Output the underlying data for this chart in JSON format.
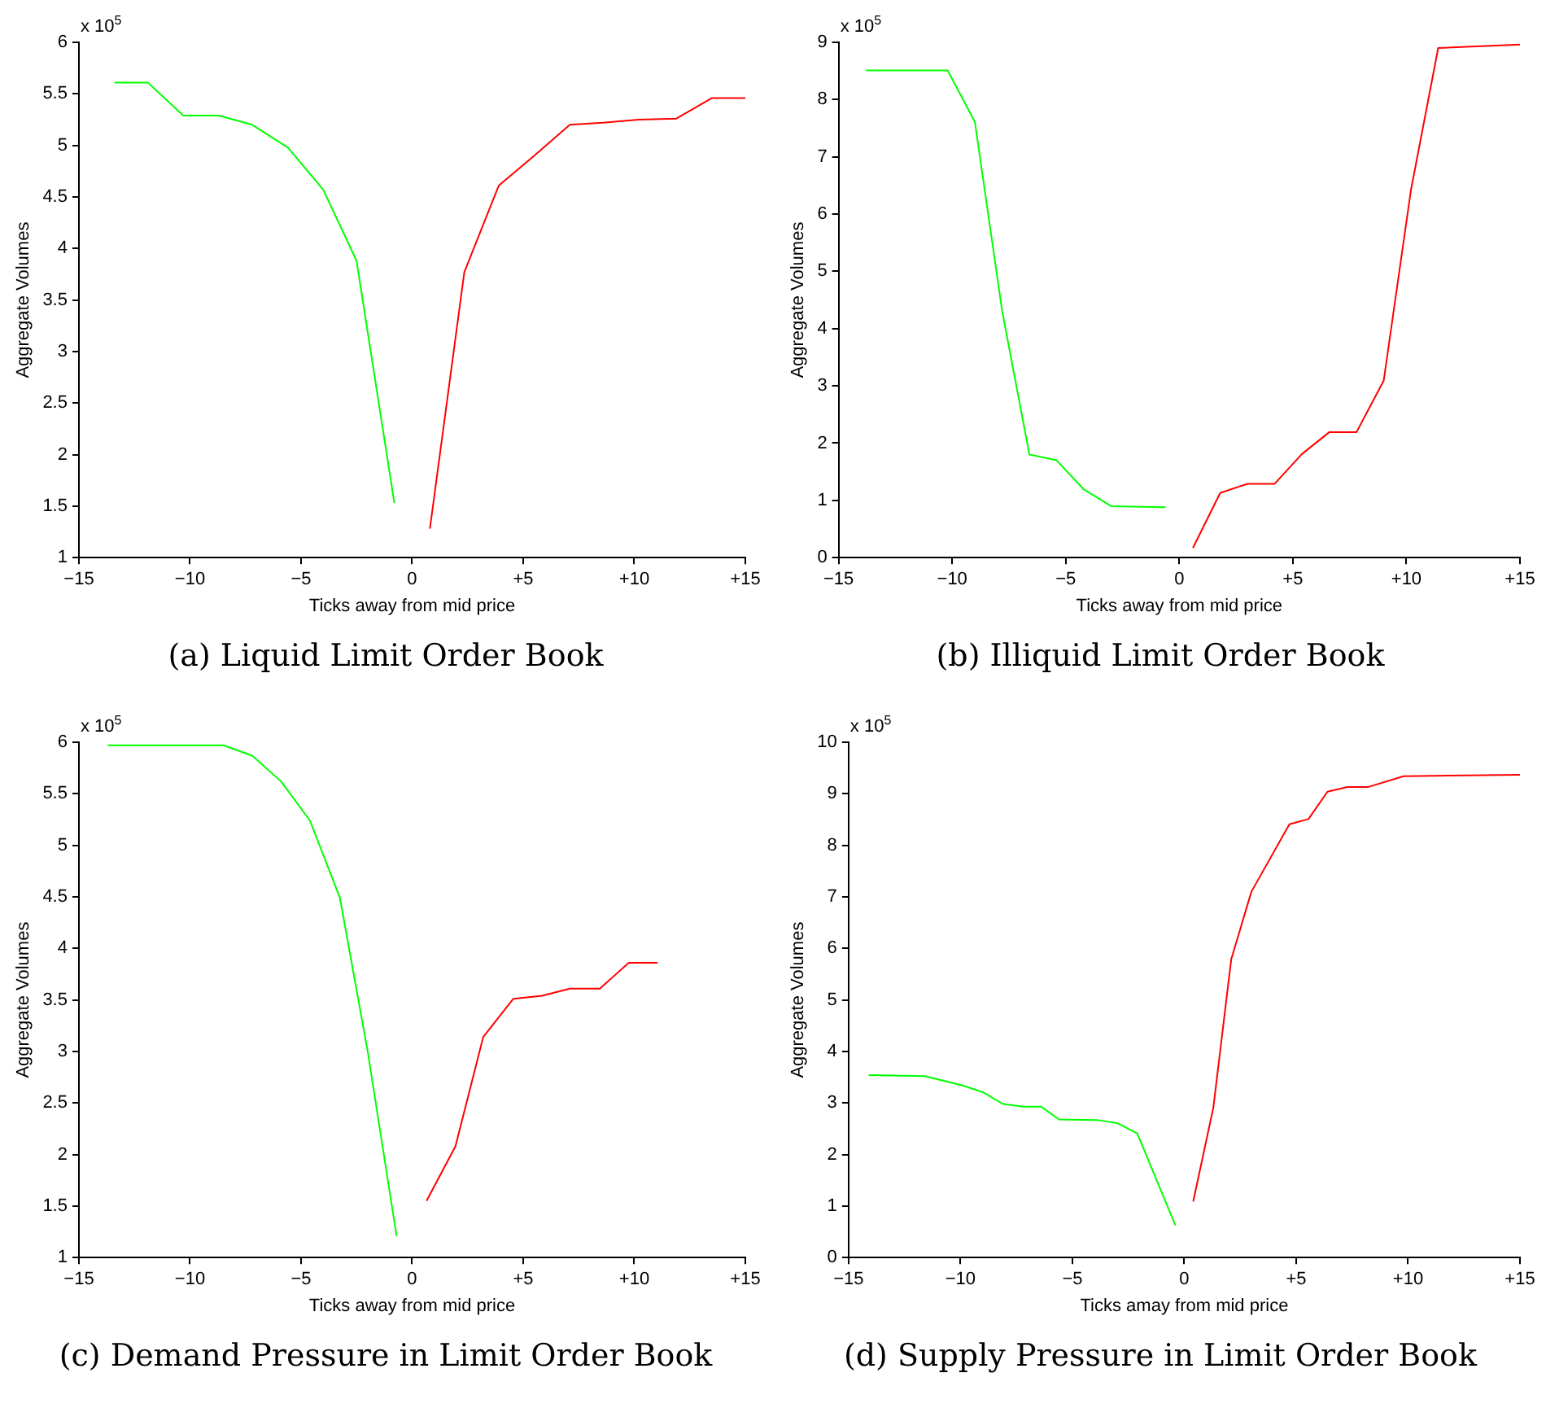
{
  "chart_data": [
    {
      "type": "line",
      "title": "(a) Liquid Limit Order Book",
      "xlabel": "Ticks away from mid price",
      "ylabel": "Aggregate Volumes",
      "annotations": [
        "x 10$^{5}$"
      ],
      "xlim": [
        -15,
        15
      ],
      "xticks": [
        {
          "value": -15,
          "label": "−15"
        },
        {
          "value": -10,
          "label": "−10"
        },
        {
          "value": -5,
          "label": "−5"
        },
        {
          "value": 0,
          "label": "0"
        },
        {
          "value": 5,
          "label": "+5"
        },
        {
          "value": 10,
          "label": "+10"
        },
        {
          "value": 15,
          "label": "+15"
        }
      ],
      "ylim": [
        1,
        6
      ],
      "yticks": [
        1,
        1.5,
        2,
        2.5,
        3,
        3.5,
        4,
        4.5,
        5,
        5.5,
        6
      ],
      "grid": false,
      "legend": false,
      "series": [
        {
          "color": "#00ff00",
          "x": [
            -13.4,
            -11.9,
            -10.3,
            -8.7,
            -7.2,
            -5.6,
            -4.0,
            -2.5,
            -0.8
          ],
          "values": [
            5.61,
            5.61,
            5.29,
            5.29,
            5.2,
            4.98,
            4.57,
            3.88,
            1.53
          ]
        },
        {
          "color": "#ff0000",
          "x": [
            0.8,
            2.35,
            3.9,
            5.5,
            7.1,
            8.6,
            10.2,
            11.9,
            13.5,
            15
          ],
          "values": [
            1.28,
            3.77,
            4.61,
            4.9,
            5.2,
            5.22,
            5.25,
            5.26,
            5.46,
            5.46
          ]
        }
      ]
    },
    {
      "type": "line",
      "title": "(b) Illiquid Limit Order Book",
      "xlabel": "Ticks away from mid price",
      "ylabel": "Aggregate Volumes",
      "annotations": [
        "x 10$^{5}$"
      ],
      "xlim": [
        -15,
        15
      ],
      "xticks": [
        {
          "value": -15,
          "label": "−15"
        },
        {
          "value": -10,
          "label": "−10"
        },
        {
          "value": -5,
          "label": "−5"
        },
        {
          "value": 0,
          "label": "0"
        },
        {
          "value": 5,
          "label": "+5"
        },
        {
          "value": 10,
          "label": "+10"
        },
        {
          "value": 15,
          "label": "+15"
        }
      ],
      "ylim": [
        0,
        9
      ],
      "yticks": [
        {
          "value": 0,
          "label": "0"
        },
        1,
        2,
        3,
        4,
        5,
        6,
        7,
        8,
        9
      ],
      "grid": false,
      "legend": false,
      "series": [
        {
          "color": "#00ff00",
          "x": [
            -13.8,
            -10.2,
            -9.0,
            -7.8,
            -6.6,
            -5.4,
            -4.2,
            -3.0,
            -0.6
          ],
          "values": [
            8.51,
            8.51,
            7.61,
            4.31,
            1.8,
            1.7,
            1.19,
            0.9,
            0.88
          ]
        },
        {
          "color": "#ff0000",
          "x": [
            0.6,
            1.8,
            3.0,
            4.2,
            5.4,
            6.6,
            7.8,
            9.0,
            10.2,
            11.4,
            15
          ],
          "values": [
            0.17,
            1.13,
            1.29,
            1.29,
            1.81,
            2.19,
            2.19,
            3.09,
            6.42,
            8.9,
            8.96
          ]
        }
      ]
    },
    {
      "type": "line",
      "title": "(c) Demand Pressure in Limit Order Book",
      "xlabel": "Ticks away from mid price",
      "ylabel": "Aggregate Volumes",
      "annotations": [
        "x 10$^{5}$"
      ],
      "xlim": [
        -15,
        15
      ],
      "xticks": [
        {
          "value": -15,
          "label": "−15"
        },
        {
          "value": -10,
          "label": "−10"
        },
        {
          "value": -5,
          "label": "−5"
        },
        {
          "value": 0,
          "label": "0"
        },
        {
          "value": 5,
          "label": "+5"
        },
        {
          "value": 10,
          "label": "+10"
        },
        {
          "value": 15,
          "label": "+15"
        }
      ],
      "ylim": [
        1,
        6
      ],
      "yticks": [
        1,
        1.5,
        2,
        2.5,
        3,
        3.5,
        4,
        4.5,
        5,
        5.5,
        6
      ],
      "grid": false,
      "legend": false,
      "series": [
        {
          "color": "#00ff00",
          "x": [
            -13.7,
            -8.5,
            -7.2,
            -5.9,
            -4.6,
            -3.25,
            -2.0,
            -0.7
          ],
          "values": [
            5.97,
            5.97,
            5.87,
            5.62,
            5.24,
            4.49,
            3.0,
            1.21
          ]
        },
        {
          "color": "#ff0000",
          "x": [
            0.65,
            1.95,
            3.2,
            4.55,
            5.85,
            7.1,
            8.45,
            9.75,
            11.05
          ],
          "values": [
            1.55,
            2.08,
            3.14,
            3.51,
            3.54,
            3.61,
            3.61,
            3.86,
            3.86
          ]
        }
      ]
    },
    {
      "type": "line",
      "title": "(d) Supply Pressure in Limit Order Book",
      "xlabel": "Ticks amay from mid price",
      "ylabel": "Aggregate Volumes",
      "annotations": [
        "x 10$^{5}$"
      ],
      "xlim": [
        -15,
        15
      ],
      "xticks": [
        {
          "value": -15,
          "label": "−15"
        },
        {
          "value": -10,
          "label": "−10"
        },
        {
          "value": -5,
          "label": "−5"
        },
        {
          "value": 0,
          "label": "0"
        },
        {
          "value": 5,
          "label": "+5"
        },
        {
          "value": 10,
          "label": "+10"
        },
        {
          "value": 15,
          "label": "+15"
        }
      ],
      "ylim": [
        0,
        10
      ],
      "yticks": [
        {
          "value": 0,
          "label": "0"
        },
        1,
        2,
        3,
        4,
        5,
        6,
        7,
        8,
        9,
        10
      ],
      "grid": false,
      "legend": false,
      "series": [
        {
          "color": "#00ff00",
          "x": [
            -14.1,
            -11.6,
            -9.9,
            -9.0,
            -8.1,
            -7.2,
            -6.4,
            -5.6,
            -3.9,
            -3.0,
            -2.1,
            -0.4
          ],
          "values": [
            3.54,
            3.52,
            3.34,
            3.21,
            2.98,
            2.93,
            2.93,
            2.68,
            2.67,
            2.61,
            2.41,
            0.63
          ]
        },
        {
          "color": "#ff0000",
          "x": [
            0.4,
            1.3,
            2.1,
            3.0,
            4.7,
            5.55,
            6.4,
            7.3,
            8.2,
            9.8,
            15
          ],
          "values": [
            1.09,
            2.91,
            5.79,
            7.1,
            8.41,
            8.51,
            9.04,
            9.13,
            9.13,
            9.34,
            9.37
          ]
        }
      ]
    }
  ]
}
